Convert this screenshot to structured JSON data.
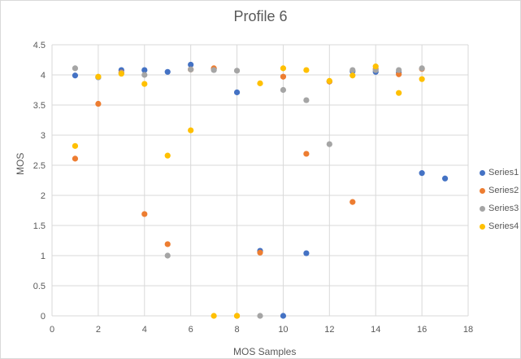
{
  "chart_data": {
    "type": "scatter",
    "title": "Profile 6",
    "xlabel": "MOS Samples",
    "ylabel": "MOS",
    "xlim": [
      0,
      18
    ],
    "ylim": [
      0,
      4.5
    ],
    "xticks": [
      "0",
      "2",
      "4",
      "6",
      "8",
      "10",
      "12",
      "14",
      "16",
      "18"
    ],
    "yticks": [
      "0",
      "0.5",
      "1",
      "1.5",
      "2",
      "2.5",
      "3",
      "3.5",
      "4",
      "4.5"
    ],
    "grid": true,
    "legend_position": "right",
    "series": [
      {
        "name": "Series1",
        "color": "#4472c4",
        "points": [
          [
            1,
            3.99
          ],
          [
            2,
            3.96
          ],
          [
            3,
            4.08
          ],
          [
            4,
            4.08
          ],
          [
            5,
            4.05
          ],
          [
            6,
            4.17
          ],
          [
            7,
            4.1
          ],
          [
            8,
            3.71
          ],
          [
            9,
            1.08
          ],
          [
            10,
            0.0
          ],
          [
            11,
            1.04
          ],
          [
            12,
            3.89
          ],
          [
            13,
            4.06
          ],
          [
            14,
            4.05
          ],
          [
            15,
            4.04
          ],
          [
            16,
            2.37
          ],
          [
            17,
            2.28
          ]
        ]
      },
      {
        "name": "Series2",
        "color": "#ed7d31",
        "points": [
          [
            1,
            2.61
          ],
          [
            2,
            3.52
          ],
          [
            3,
            4.04
          ],
          [
            4,
            1.69
          ],
          [
            5,
            1.19
          ],
          [
            6,
            4.09
          ],
          [
            7,
            4.11
          ],
          [
            8,
            0.0
          ],
          [
            9,
            1.05
          ],
          [
            10,
            3.97
          ],
          [
            11,
            2.69
          ],
          [
            12,
            3.89
          ],
          [
            13,
            1.89
          ],
          [
            14,
            4.1
          ],
          [
            15,
            4.01
          ],
          [
            16,
            4.1
          ]
        ]
      },
      {
        "name": "Series3",
        "color": "#a5a5a5",
        "points": [
          [
            1,
            4.11
          ],
          [
            2,
            3.96
          ],
          [
            3,
            4.03
          ],
          [
            4,
            4.0
          ],
          [
            5,
            1.0
          ],
          [
            6,
            4.09
          ],
          [
            7,
            4.08
          ],
          [
            8,
            4.07
          ],
          [
            9,
            0.0
          ],
          [
            10,
            3.75
          ],
          [
            11,
            3.58
          ],
          [
            12,
            2.85
          ],
          [
            13,
            4.08
          ],
          [
            14,
            4.08
          ],
          [
            15,
            4.08
          ],
          [
            16,
            4.11
          ]
        ]
      },
      {
        "name": "Series4",
        "color": "#ffc000",
        "points": [
          [
            1,
            2.82
          ],
          [
            2,
            3.97
          ],
          [
            3,
            4.02
          ],
          [
            4,
            3.85
          ],
          [
            5,
            2.66
          ],
          [
            6,
            3.08
          ],
          [
            7,
            0.0
          ],
          [
            8,
            0.0
          ],
          [
            9,
            3.86
          ],
          [
            10,
            4.11
          ],
          [
            11,
            4.08
          ],
          [
            12,
            3.9
          ],
          [
            13,
            3.99
          ],
          [
            14,
            4.14
          ],
          [
            15,
            3.7
          ],
          [
            16,
            3.93
          ]
        ]
      }
    ]
  }
}
